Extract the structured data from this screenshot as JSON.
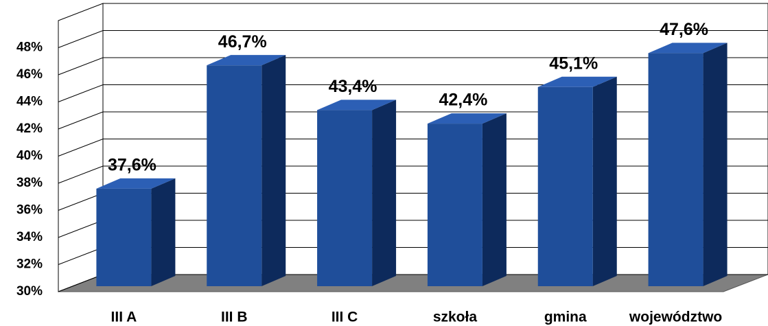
{
  "chart_data": {
    "type": "bar3d",
    "categories": [
      "III A",
      "III B",
      "III C",
      "szkoła",
      "gmina",
      "województwo"
    ],
    "values": [
      37.6,
      46.7,
      43.4,
      42.4,
      45.1,
      47.6
    ],
    "value_labels": [
      "37,6%",
      "46,7%",
      "43,4%",
      "42,4%",
      "45,1%",
      "47,6%"
    ],
    "color": "#1f4e9a",
    "ylim": [
      30,
      50
    ],
    "yticks": [
      {
        "value": 30,
        "label": "30%"
      },
      {
        "value": 32,
        "label": "32%"
      },
      {
        "value": 34,
        "label": "34%"
      },
      {
        "value": 36,
        "label": "36%"
      },
      {
        "value": 38,
        "label": "38%"
      },
      {
        "value": 40,
        "label": "40%"
      },
      {
        "value": 42,
        "label": "42%"
      },
      {
        "value": 44,
        "label": "44%"
      },
      {
        "value": 46,
        "label": "46%"
      },
      {
        "value": 48,
        "label": "48%"
      }
    ],
    "grid": true
  }
}
